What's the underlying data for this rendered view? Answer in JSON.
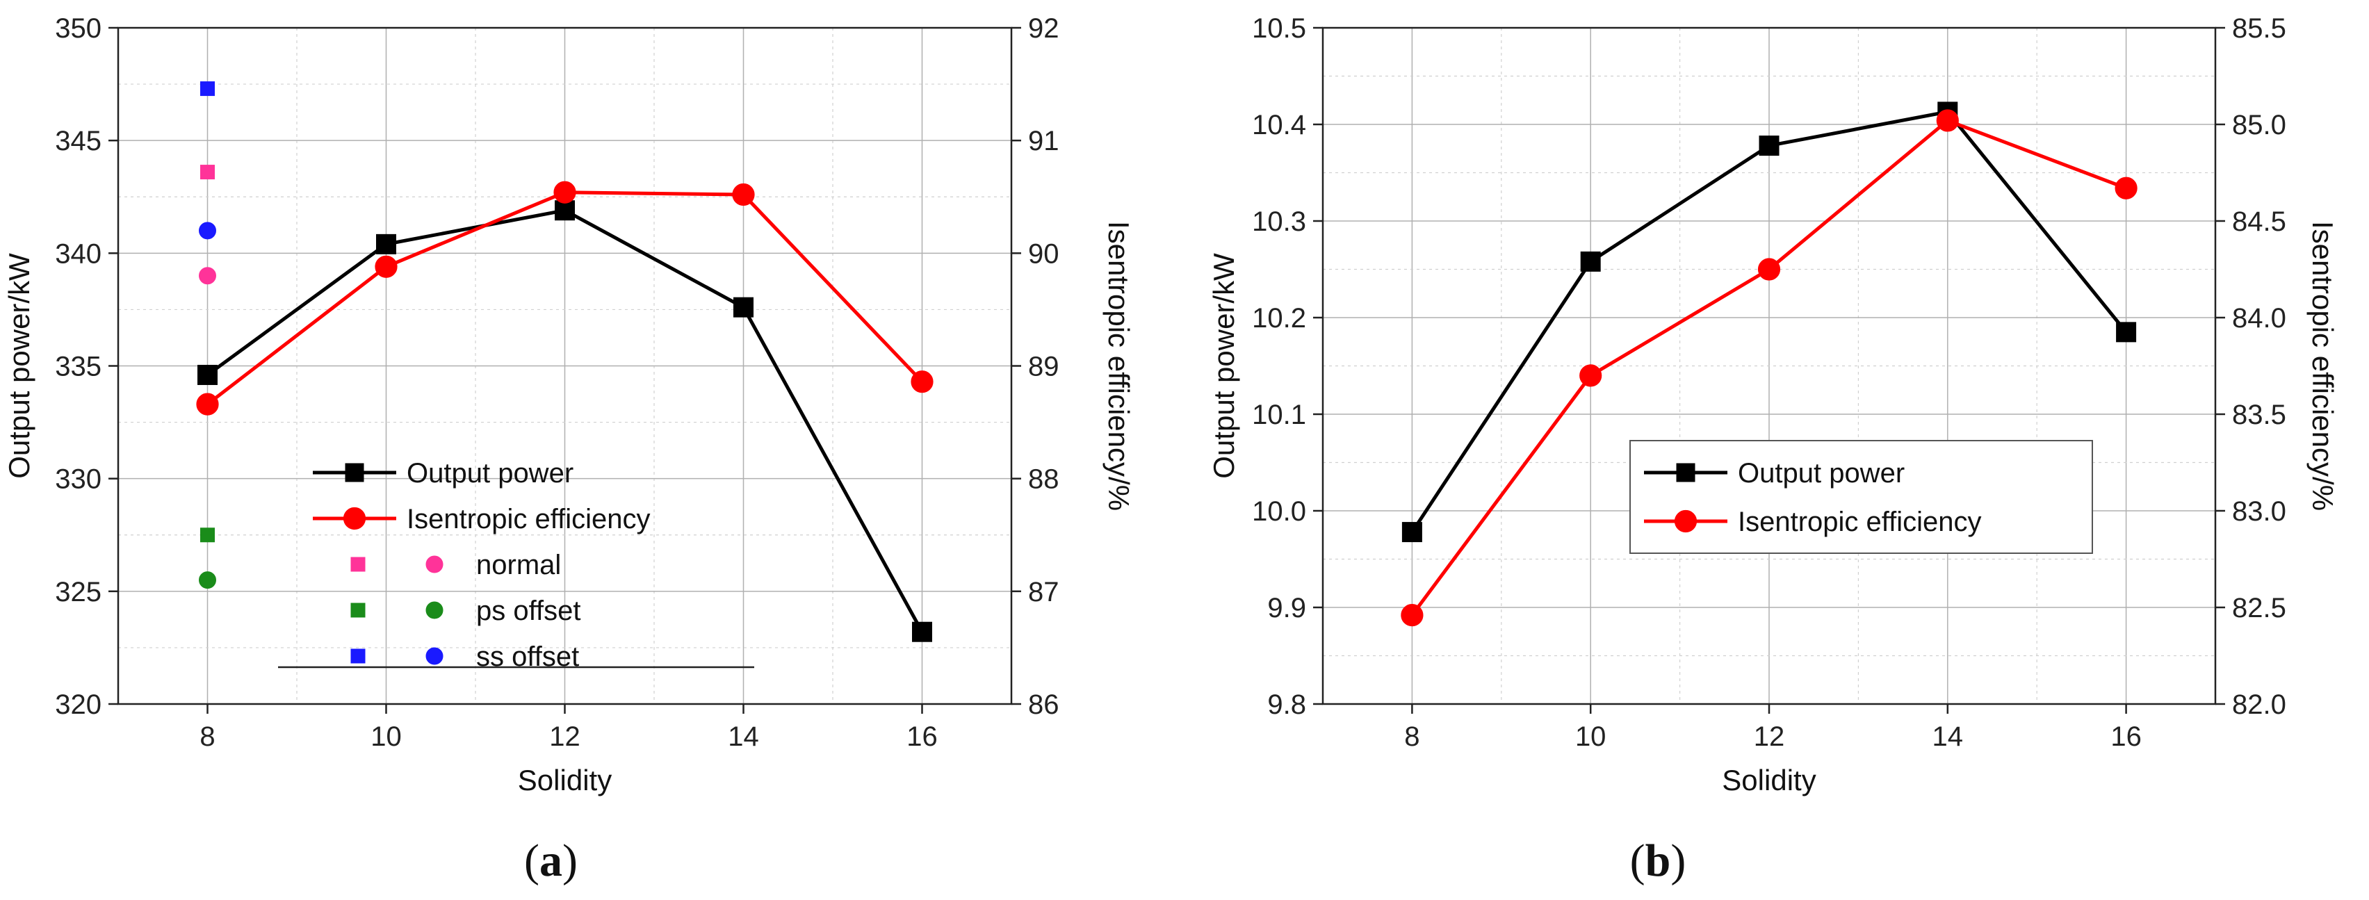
{
  "chart_data": [
    {
      "type": "line",
      "panel_label": "a",
      "xlabel": "Solidity",
      "ylabel": "Output power/kW",
      "y2label": "Isentropic efficiency/%",
      "xlim": [
        7,
        17
      ],
      "ylim": [
        320,
        350
      ],
      "y2lim": [
        86,
        92
      ],
      "xticks": [
        8,
        10,
        12,
        14,
        16
      ],
      "yticks": [
        320,
        325,
        330,
        335,
        340,
        345,
        350
      ],
      "y2ticks": [
        86,
        87,
        88,
        89,
        90,
        91,
        92
      ],
      "grid": true,
      "series": [
        {
          "name": "Output power",
          "axis": "left",
          "marker": "square",
          "color": "#000000",
          "x": [
            8,
            10,
            12,
            14,
            16
          ],
          "y": [
            334.6,
            340.4,
            341.9,
            337.6,
            323.2
          ]
        },
        {
          "name": "Isentropic efficiency",
          "axis": "right",
          "marker": "circle",
          "color": "#ff0000",
          "x": [
            8,
            10,
            12,
            14,
            16
          ],
          "y": [
            88.66,
            89.88,
            90.54,
            90.52,
            88.86
          ]
        }
      ],
      "extra_points": [
        {
          "group": "normal",
          "marker": "square",
          "color": "#ff3399",
          "axis": "left",
          "x": 8,
          "y": 343.6
        },
        {
          "group": "normal",
          "marker": "circle",
          "color": "#ff3399",
          "axis": "left",
          "x": 8,
          "y": 339.0
        },
        {
          "group": "ps offset",
          "marker": "square",
          "color": "#1a8c1a",
          "axis": "left",
          "x": 8,
          "y": 327.5
        },
        {
          "group": "ps offset",
          "marker": "circle",
          "color": "#1a8c1a",
          "axis": "left",
          "x": 8,
          "y": 325.5
        },
        {
          "group": "ss offset",
          "marker": "square",
          "color": "#1a1aff",
          "axis": "left",
          "x": 8,
          "y": 347.3
        },
        {
          "group": "ss offset",
          "marker": "circle",
          "color": "#1a1aff",
          "axis": "left",
          "x": 8,
          "y": 341.0
        }
      ],
      "legend": {
        "placement": "bottom-center",
        "entries": [
          {
            "label": "Output power",
            "marker": "square",
            "color": "#000000",
            "line": true
          },
          {
            "label": "Isentropic efficiency",
            "marker": "circle",
            "color": "#ff0000",
            "line": true
          },
          {
            "label": "normal",
            "marker": "square+circle",
            "color": "#ff3399",
            "line": false
          },
          {
            "label": "ps offset",
            "marker": "square+circle",
            "color": "#1a8c1a",
            "line": false
          },
          {
            "label": "ss offset",
            "marker": "square+circle",
            "color": "#1a1aff",
            "line": false
          }
        ]
      }
    },
    {
      "type": "line",
      "panel_label": "b",
      "xlabel": "Solidity",
      "ylabel": "Output power/kW",
      "y2label": "Isentropic efficiency/%",
      "xlim": [
        7,
        17
      ],
      "ylim": [
        9.8,
        10.5
      ],
      "y2lim": [
        82.0,
        85.5
      ],
      "xticks": [
        8,
        10,
        12,
        14,
        16
      ],
      "yticks": [
        9.8,
        9.9,
        10.0,
        10.1,
        10.2,
        10.3,
        10.4,
        10.5
      ],
      "y2ticks": [
        82.0,
        82.5,
        83.0,
        83.5,
        84.0,
        84.5,
        85.0,
        85.5
      ],
      "grid": true,
      "series": [
        {
          "name": "Output power",
          "axis": "left",
          "marker": "square",
          "color": "#000000",
          "x": [
            8,
            10,
            12,
            14,
            16
          ],
          "y": [
            9.978,
            10.258,
            10.378,
            10.413,
            10.185
          ]
        },
        {
          "name": "Isentropic efficiency",
          "axis": "right",
          "marker": "circle",
          "color": "#ff0000",
          "x": [
            8,
            10,
            12,
            14,
            16
          ],
          "y": [
            82.46,
            83.7,
            84.25,
            85.02,
            84.67
          ]
        }
      ],
      "extra_points": [],
      "legend": {
        "placement": "center",
        "entries": [
          {
            "label": "Output power",
            "marker": "square",
            "color": "#000000",
            "line": true
          },
          {
            "label": "Isentropic efficiency",
            "marker": "circle",
            "color": "#ff0000",
            "line": true
          }
        ]
      }
    }
  ]
}
